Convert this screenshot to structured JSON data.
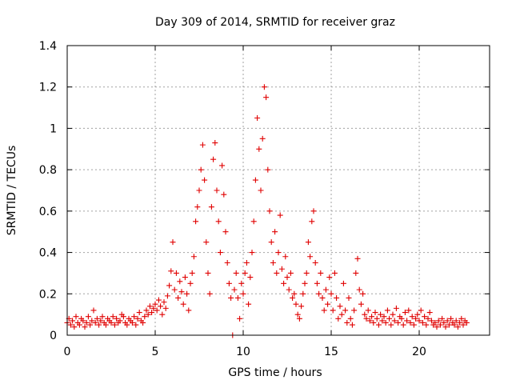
{
  "chart_data": {
    "type": "scatter",
    "title": "Day 309 of 2014, SRMTID for receiver graz",
    "xlabel": "GPS time / hours",
    "ylabel": "SRMTID / TECUs",
    "xlim": [
      0,
      24
    ],
    "ylim": [
      0,
      1.4
    ],
    "xticks": [
      0,
      5,
      10,
      15,
      20
    ],
    "xtick_labels": [
      "0",
      "5",
      "10",
      "15",
      "20"
    ],
    "yticks": [
      0,
      0.2,
      0.4,
      0.6,
      0.8,
      1.0,
      1.2,
      1.4
    ],
    "ytick_labels": [
      "0",
      "0.2",
      "0.4",
      "0.6",
      "0.8",
      "1",
      "1.2",
      "1.4"
    ],
    "grid": true,
    "marker": "+",
    "color": "#e00000",
    "series": [
      {
        "name": "SRMTID",
        "points": [
          [
            0.0,
            0.06
          ],
          [
            0.1,
            0.08
          ],
          [
            0.2,
            0.05
          ],
          [
            0.3,
            0.07
          ],
          [
            0.4,
            0.04
          ],
          [
            0.5,
            0.09
          ],
          [
            0.6,
            0.06
          ],
          [
            0.7,
            0.05
          ],
          [
            0.8,
            0.08
          ],
          [
            0.9,
            0.07
          ],
          [
            1.0,
            0.04
          ],
          [
            1.1,
            0.06
          ],
          [
            1.2,
            0.09
          ],
          [
            1.3,
            0.05
          ],
          [
            1.4,
            0.07
          ],
          [
            1.5,
            0.12
          ],
          [
            1.6,
            0.06
          ],
          [
            1.7,
            0.08
          ],
          [
            1.8,
            0.05
          ],
          [
            1.9,
            0.07
          ],
          [
            2.0,
            0.09
          ],
          [
            2.1,
            0.06
          ],
          [
            2.2,
            0.05
          ],
          [
            2.3,
            0.08
          ],
          [
            2.4,
            0.07
          ],
          [
            2.5,
            0.06
          ],
          [
            2.6,
            0.09
          ],
          [
            2.7,
            0.05
          ],
          [
            2.8,
            0.08
          ],
          [
            2.9,
            0.06
          ],
          [
            3.0,
            0.07
          ],
          [
            3.1,
            0.1
          ],
          [
            3.2,
            0.09
          ],
          [
            3.3,
            0.06
          ],
          [
            3.4,
            0.05
          ],
          [
            3.5,
            0.08
          ],
          [
            3.6,
            0.07
          ],
          [
            3.7,
            0.06
          ],
          [
            3.8,
            0.09
          ],
          [
            3.9,
            0.05
          ],
          [
            4.0,
            0.08
          ],
          [
            4.1,
            0.11
          ],
          [
            4.2,
            0.07
          ],
          [
            4.3,
            0.06
          ],
          [
            4.4,
            0.09
          ],
          [
            4.5,
            0.12
          ],
          [
            4.6,
            0.1
          ],
          [
            4.7,
            0.14
          ],
          [
            4.8,
            0.11
          ],
          [
            4.9,
            0.13
          ],
          [
            5.0,
            0.15
          ],
          [
            5.1,
            0.12
          ],
          [
            5.2,
            0.17
          ],
          [
            5.3,
            0.14
          ],
          [
            5.4,
            0.1
          ],
          [
            5.5,
            0.16
          ],
          [
            5.6,
            0.13
          ],
          [
            5.7,
            0.19
          ],
          [
            5.8,
            0.24
          ],
          [
            5.9,
            0.31
          ],
          [
            6.0,
            0.45
          ],
          [
            6.1,
            0.22
          ],
          [
            6.2,
            0.3
          ],
          [
            6.3,
            0.18
          ],
          [
            6.4,
            0.26
          ],
          [
            6.5,
            0.21
          ],
          [
            6.6,
            0.15
          ],
          [
            6.7,
            0.28
          ],
          [
            6.8,
            0.2
          ],
          [
            6.9,
            0.12
          ],
          [
            7.0,
            0.25
          ],
          [
            7.1,
            0.3
          ],
          [
            7.2,
            0.38
          ],
          [
            7.3,
            0.55
          ],
          [
            7.4,
            0.62
          ],
          [
            7.5,
            0.7
          ],
          [
            7.6,
            0.8
          ],
          [
            7.7,
            0.92
          ],
          [
            7.8,
            0.75
          ],
          [
            7.9,
            0.45
          ],
          [
            8.0,
            0.3
          ],
          [
            8.1,
            0.2
          ],
          [
            8.2,
            0.62
          ],
          [
            8.3,
            0.85
          ],
          [
            8.4,
            0.93
          ],
          [
            8.5,
            0.7
          ],
          [
            8.6,
            0.55
          ],
          [
            8.7,
            0.4
          ],
          [
            8.8,
            0.82
          ],
          [
            8.9,
            0.68
          ],
          [
            9.0,
            0.5
          ],
          [
            9.1,
            0.35
          ],
          [
            9.2,
            0.25
          ],
          [
            9.3,
            0.18
          ],
          [
            9.4,
            0.0
          ],
          [
            9.5,
            0.22
          ],
          [
            9.6,
            0.3
          ],
          [
            9.7,
            0.18
          ],
          [
            9.8,
            0.08
          ],
          [
            9.9,
            0.25
          ],
          [
            10.0,
            0.2
          ],
          [
            10.1,
            0.3
          ],
          [
            10.2,
            0.35
          ],
          [
            10.3,
            0.15
          ],
          [
            10.4,
            0.28
          ],
          [
            10.5,
            0.4
          ],
          [
            10.6,
            0.55
          ],
          [
            10.7,
            0.75
          ],
          [
            10.8,
            1.05
          ],
          [
            10.9,
            0.9
          ],
          [
            11.0,
            0.7
          ],
          [
            11.1,
            0.95
          ],
          [
            11.2,
            1.2
          ],
          [
            11.3,
            1.15
          ],
          [
            11.4,
            0.8
          ],
          [
            11.5,
            0.6
          ],
          [
            11.6,
            0.45
          ],
          [
            11.7,
            0.35
          ],
          [
            11.8,
            0.5
          ],
          [
            11.9,
            0.3
          ],
          [
            12.0,
            0.4
          ],
          [
            12.1,
            0.58
          ],
          [
            12.2,
            0.32
          ],
          [
            12.3,
            0.25
          ],
          [
            12.4,
            0.38
          ],
          [
            12.5,
            0.28
          ],
          [
            12.6,
            0.22
          ],
          [
            12.7,
            0.3
          ],
          [
            12.8,
            0.18
          ],
          [
            12.9,
            0.2
          ],
          [
            13.0,
            0.15
          ],
          [
            13.1,
            0.1
          ],
          [
            13.2,
            0.08
          ],
          [
            13.3,
            0.14
          ],
          [
            13.4,
            0.2
          ],
          [
            13.5,
            0.25
          ],
          [
            13.6,
            0.3
          ],
          [
            13.7,
            0.45
          ],
          [
            13.8,
            0.38
          ],
          [
            13.9,
            0.55
          ],
          [
            14.0,
            0.6
          ],
          [
            14.1,
            0.35
          ],
          [
            14.2,
            0.25
          ],
          [
            14.3,
            0.2
          ],
          [
            14.4,
            0.3
          ],
          [
            14.5,
            0.18
          ],
          [
            14.6,
            0.12
          ],
          [
            14.7,
            0.22
          ],
          [
            14.8,
            0.15
          ],
          [
            14.9,
            0.28
          ],
          [
            15.0,
            0.2
          ],
          [
            15.1,
            0.12
          ],
          [
            15.2,
            0.3
          ],
          [
            15.3,
            0.18
          ],
          [
            15.4,
            0.08
          ],
          [
            15.5,
            0.14
          ],
          [
            15.6,
            0.1
          ],
          [
            15.7,
            0.25
          ],
          [
            15.8,
            0.12
          ],
          [
            15.9,
            0.06
          ],
          [
            16.0,
            0.18
          ],
          [
            16.1,
            0.08
          ],
          [
            16.2,
            0.05
          ],
          [
            16.3,
            0.12
          ],
          [
            16.4,
            0.3
          ],
          [
            16.5,
            0.37
          ],
          [
            16.6,
            0.22
          ],
          [
            16.7,
            0.15
          ],
          [
            16.8,
            0.2
          ],
          [
            16.9,
            0.1
          ],
          [
            17.0,
            0.08
          ],
          [
            17.1,
            0.12
          ],
          [
            17.2,
            0.07
          ],
          [
            17.3,
            0.09
          ],
          [
            17.4,
            0.06
          ],
          [
            17.5,
            0.11
          ],
          [
            17.6,
            0.08
          ],
          [
            17.7,
            0.05
          ],
          [
            17.8,
            0.1
          ],
          [
            17.9,
            0.07
          ],
          [
            18.0,
            0.09
          ],
          [
            18.1,
            0.06
          ],
          [
            18.2,
            0.12
          ],
          [
            18.3,
            0.08
          ],
          [
            18.4,
            0.05
          ],
          [
            18.5,
            0.1
          ],
          [
            18.6,
            0.07
          ],
          [
            18.7,
            0.13
          ],
          [
            18.8,
            0.06
          ],
          [
            18.9,
            0.09
          ],
          [
            19.0,
            0.08
          ],
          [
            19.1,
            0.05
          ],
          [
            19.2,
            0.11
          ],
          [
            19.3,
            0.07
          ],
          [
            19.4,
            0.12
          ],
          [
            19.5,
            0.06
          ],
          [
            19.6,
            0.09
          ],
          [
            19.7,
            0.05
          ],
          [
            19.8,
            0.08
          ],
          [
            19.9,
            0.1
          ],
          [
            20.0,
            0.07
          ],
          [
            20.1,
            0.12
          ],
          [
            20.2,
            0.06
          ],
          [
            20.3,
            0.09
          ],
          [
            20.4,
            0.05
          ],
          [
            20.5,
            0.08
          ],
          [
            20.6,
            0.11
          ],
          [
            20.7,
            0.07
          ],
          [
            20.8,
            0.05
          ],
          [
            20.9,
            0.06
          ],
          [
            21.0,
            0.04
          ],
          [
            21.1,
            0.07
          ],
          [
            21.2,
            0.05
          ],
          [
            21.3,
            0.08
          ],
          [
            21.4,
            0.06
          ],
          [
            21.5,
            0.04
          ],
          [
            21.6,
            0.07
          ],
          [
            21.7,
            0.05
          ],
          [
            21.8,
            0.08
          ],
          [
            21.9,
            0.06
          ],
          [
            22.0,
            0.05
          ],
          [
            22.1,
            0.07
          ],
          [
            22.2,
            0.04
          ],
          [
            22.3,
            0.06
          ],
          [
            22.4,
            0.08
          ],
          [
            22.5,
            0.05
          ],
          [
            22.6,
            0.07
          ],
          [
            22.7,
            0.06
          ]
        ]
      }
    ]
  }
}
